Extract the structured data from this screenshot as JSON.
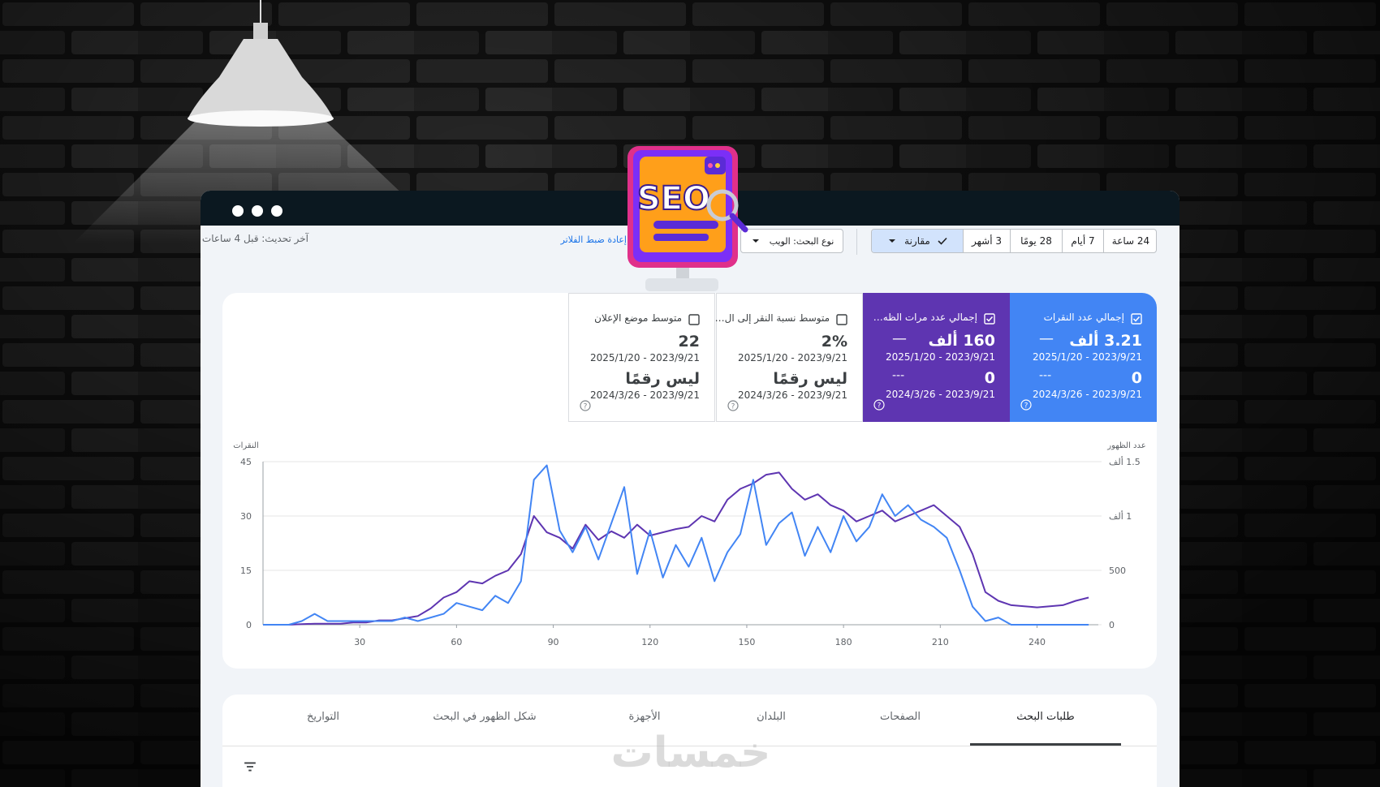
{
  "seo_badge": "SEO",
  "toolbar": {
    "ranges": [
      "24 ساعة",
      "7 أيام",
      "28 يومًا",
      "3 أشهر"
    ],
    "compare": "مقارنة",
    "search_type": "نوع البحث: الويب",
    "reset_link": "إعادة ضبط الفلاتر",
    "last_update": "آخر تحديث: قبل 4 ساعات"
  },
  "metrics": [
    {
      "label": "إجمالي عدد النقرات",
      "value": "3.21 ألف",
      "change": "—",
      "range": "2025/1/20 - 2023/9/21",
      "compare_value": "0",
      "compare_change": "---",
      "compare_range": "2024/3/26 - 2023/9/21"
    },
    {
      "label": "إجمالي عدد مرات الظه…",
      "value": "160 ألف",
      "change": "—",
      "range": "2025/1/20 - 2023/9/21",
      "compare_value": "0",
      "compare_change": "---",
      "compare_range": "2024/3/26 - 2023/9/21"
    },
    {
      "label": "متوسط نسبة النقر إلى ال…",
      "value": "2%",
      "range": "2025/1/20 - 2023/9/21",
      "compare_value": "ليس رقمًا",
      "compare_range": "2024/3/26 - 2023/9/21"
    },
    {
      "label": "متوسط موضع الإعلان",
      "value": "22",
      "range": "2025/1/20 - 2023/9/21",
      "compare_value": "ليس رقمًا",
      "compare_range": "2024/3/26 - 2023/9/21"
    }
  ],
  "chart_data": {
    "type": "line",
    "y_label": "النقرات",
    "y2_label": "عدد الظهور",
    "x": [
      0,
      4,
      8,
      12,
      16,
      20,
      24,
      28,
      32,
      36,
      40,
      44,
      48,
      52,
      56,
      60,
      64,
      68,
      72,
      76,
      80,
      84,
      88,
      92,
      96,
      100,
      104,
      108,
      112,
      116,
      120,
      124,
      128,
      132,
      136,
      140,
      144,
      148,
      152,
      156,
      160,
      164,
      168,
      172,
      176,
      180,
      184,
      188,
      192,
      196,
      200,
      204,
      208,
      212,
      216,
      220,
      224,
      228,
      232,
      236,
      240,
      244,
      248,
      252,
      256
    ],
    "series": [
      {
        "color": "#4285f4",
        "axis": "y",
        "values": [
          0,
          0,
          0,
          1,
          3,
          1,
          1,
          1,
          1,
          1,
          1,
          2,
          1,
          2,
          3,
          6,
          5,
          4,
          8,
          6,
          12,
          40,
          44,
          26,
          20,
          27,
          18,
          28,
          38,
          14,
          26,
          13,
          22,
          16,
          24,
          12,
          20,
          25,
          40,
          22,
          28,
          31,
          19,
          27,
          20,
          30,
          23,
          27,
          36,
          30,
          33,
          29,
          27,
          24,
          15,
          5,
          1,
          2,
          0,
          0,
          0,
          0,
          0,
          0,
          0
        ]
      },
      {
        "color": "#5e35b1",
        "axis": "y2",
        "values": [
          0,
          0,
          0,
          5,
          10,
          10,
          10,
          20,
          20,
          40,
          40,
          60,
          80,
          150,
          250,
          300,
          400,
          380,
          450,
          500,
          650,
          1000,
          850,
          800,
          700,
          920,
          780,
          860,
          800,
          920,
          820,
          850,
          880,
          900,
          1000,
          950,
          1150,
          1250,
          1300,
          1380,
          1400,
          1250,
          1150,
          1200,
          1100,
          1050,
          950,
          1000,
          1050,
          950,
          1000,
          1050,
          1100,
          1000,
          900,
          650,
          300,
          220,
          180,
          170,
          160,
          170,
          180,
          220,
          250
        ]
      }
    ],
    "xlim": [
      0,
      259
    ],
    "xticks": [
      30,
      60,
      90,
      120,
      150,
      180,
      210,
      240
    ],
    "ylim": [
      0,
      45
    ],
    "yticks": [
      0,
      15,
      30,
      45
    ],
    "y2lim": [
      0,
      1500
    ],
    "y2ticks": [
      0,
      500,
      {
        "value": 1000,
        "label": "1 ألف"
      },
      {
        "value": 1500,
        "label": "1.5 ألف"
      }
    ],
    "grid": true
  },
  "tabs": [
    "طلبات البحث",
    "الصفحات",
    "البلدان",
    "الأجهزة",
    "شكل الظهور في البحث",
    "التواريخ"
  ],
  "watermark": "خمسات"
}
